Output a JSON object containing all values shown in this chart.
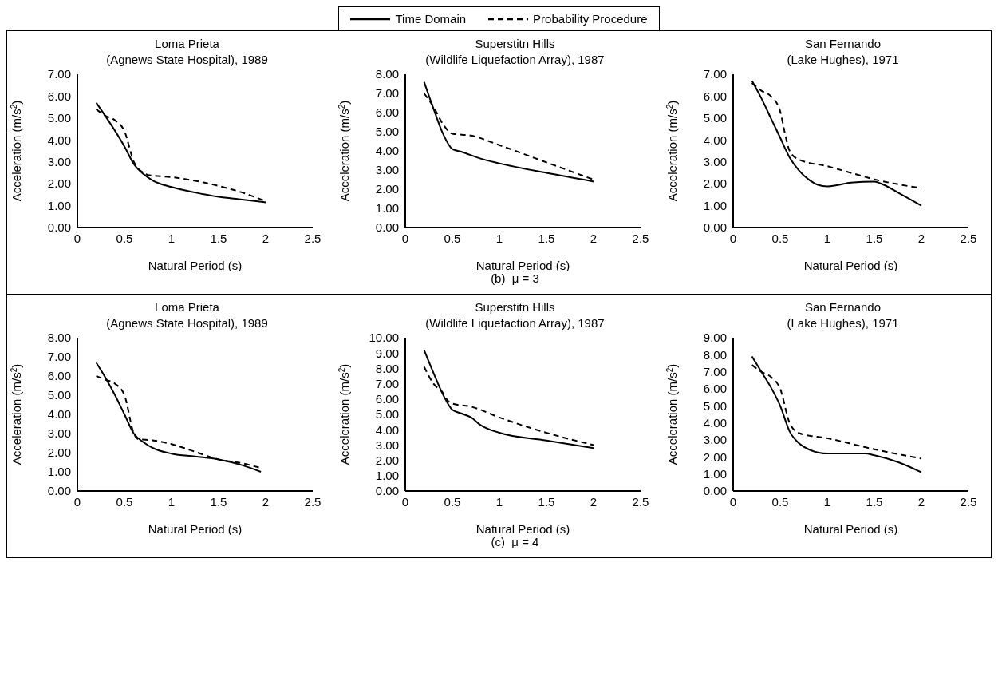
{
  "chart_data": [
    {
      "type": "line",
      "title": "Loma Prieta",
      "subtitle": "(Agnews State Hospital), 1989",
      "xlabel": "Natural Period (s)",
      "ylabel": "Acceleration (m/s$^{2}$)",
      "legend": "top",
      "series": [
        {
          "name": "Time Domain",
          "color": "#000000",
          "line_style": "solid",
          "x": [
            0.2,
            0.5,
            0.6,
            0.7,
            0.8,
            1.0,
            1.25,
            1.5,
            1.75,
            2.0
          ],
          "values": [
            5.7,
            3.7,
            2.9,
            2.45,
            2.15,
            1.85,
            1.6,
            1.4,
            1.28,
            1.15
          ]
        },
        {
          "name": "Probability Procedure",
          "color": "#000000",
          "line_style": "dashed",
          "x": [
            0.2,
            0.3,
            0.4,
            0.5,
            0.6,
            0.7,
            0.75,
            1.0,
            1.5,
            1.75,
            2.0
          ],
          "values": [
            5.4,
            5.1,
            4.9,
            4.4,
            3.0,
            2.5,
            2.4,
            2.3,
            1.9,
            1.6,
            1.2
          ]
        }
      ],
      "xlim": [
        0,
        2.5
      ],
      "xticks": [
        0,
        0.5,
        1,
        1.5,
        2,
        2.5
      ],
      "ylim": [
        0,
        7
      ],
      "yticks": [
        {
          "value": 0,
          "label": "0.00"
        },
        {
          "value": 1,
          "label": "1.00"
        },
        {
          "value": 2,
          "label": "2.00"
        },
        {
          "value": 3,
          "label": "3.00"
        },
        {
          "value": 4,
          "label": "4.00"
        },
        {
          "value": 5,
          "label": "5.00"
        },
        {
          "value": 6,
          "label": "6.00"
        },
        {
          "value": 7,
          "label": "7.00"
        }
      ]
    },
    {
      "type": "line",
      "title": "Superstitn Hills",
      "subtitle": "(Wildlife Liquefaction Array), 1987",
      "xlabel": "Natural Period (s)",
      "ylabel": "Acceleration (m/s$^{2}$)",
      "annotations": [
        "(b)  μ = 3"
      ],
      "series": [
        {
          "color": "#000000",
          "line_style": "solid",
          "x": [
            0.2,
            0.3,
            0.4,
            0.5,
            0.6,
            0.8,
            1.0,
            1.5,
            2.0
          ],
          "values": [
            7.6,
            6.2,
            4.9,
            4.1,
            3.95,
            3.6,
            3.35,
            2.85,
            2.4
          ]
        },
        {
          "color": "#000000",
          "line_style": "dashed",
          "x": [
            0.2,
            0.3,
            0.4,
            0.5,
            0.7,
            1.0,
            1.5,
            2.0
          ],
          "values": [
            7.0,
            6.3,
            5.4,
            4.9,
            4.8,
            4.3,
            3.4,
            2.5
          ]
        }
      ],
      "xlim": [
        0,
        2.5
      ],
      "xticks": [
        0,
        0.5,
        1,
        1.5,
        2,
        2.5
      ],
      "ylim": [
        0,
        8
      ],
      "yticks": [
        {
          "value": 0,
          "label": "0.00"
        },
        {
          "value": 1,
          "label": "1.00"
        },
        {
          "value": 2,
          "label": "2.00"
        },
        {
          "value": 3,
          "label": "3.00"
        },
        {
          "value": 4,
          "label": "4.00"
        },
        {
          "value": 5,
          "label": "5.00"
        },
        {
          "value": 6,
          "label": "6.00"
        },
        {
          "value": 7,
          "label": "7.00"
        },
        {
          "value": 8,
          "label": "8.00"
        }
      ]
    },
    {
      "type": "line",
      "title": "San Fernando",
      "subtitle": "(Lake Hughes), 1971",
      "xlabel": "Natural Period (s)",
      "ylabel": "Acceleration (m/s$^{2}$)",
      "series": [
        {
          "color": "#000000",
          "line_style": "solid",
          "x": [
            0.2,
            0.3,
            0.4,
            0.5,
            0.6,
            0.7,
            0.8,
            0.9,
            1.0,
            1.1,
            1.25,
            1.5,
            1.6,
            1.75,
            2.0
          ],
          "values": [
            6.7,
            5.9,
            5.0,
            4.1,
            3.2,
            2.6,
            2.2,
            1.95,
            1.88,
            1.93,
            2.05,
            2.1,
            1.95,
            1.6,
            1.0
          ]
        },
        {
          "color": "#000000",
          "line_style": "dashed",
          "x": [
            0.2,
            0.3,
            0.4,
            0.5,
            0.55,
            0.6,
            0.7,
            1.0,
            1.25,
            1.5,
            2.0
          ],
          "values": [
            6.6,
            6.25,
            6.0,
            5.3,
            4.3,
            3.5,
            3.1,
            2.8,
            2.5,
            2.2,
            1.8
          ]
        }
      ],
      "xlim": [
        0,
        2.5
      ],
      "xticks": [
        0,
        0.5,
        1,
        1.5,
        2,
        2.5
      ],
      "ylim": [
        0,
        7
      ],
      "yticks": [
        {
          "value": 0,
          "label": "0.00"
        },
        {
          "value": 1,
          "label": "1.00"
        },
        {
          "value": 2,
          "label": "2.00"
        },
        {
          "value": 3,
          "label": "3.00"
        },
        {
          "value": 4,
          "label": "4.00"
        },
        {
          "value": 5,
          "label": "5.00"
        },
        {
          "value": 6,
          "label": "6.00"
        },
        {
          "value": 7,
          "label": "7.00"
        }
      ]
    },
    {
      "type": "line",
      "title": "Loma Prieta",
      "subtitle": "(Agnews State Hospital), 1989",
      "xlabel": "Natural Period (s)",
      "ylabel": "Acceleration (m/s$^{2}$)",
      "series": [
        {
          "color": "#000000",
          "line_style": "solid",
          "x": [
            0.2,
            0.3,
            0.4,
            0.5,
            0.6,
            0.7,
            0.8,
            1.0,
            1.25,
            1.5,
            1.75,
            1.95
          ],
          "values": [
            6.7,
            5.9,
            5.0,
            4.0,
            3.0,
            2.55,
            2.25,
            1.95,
            1.8,
            1.65,
            1.35,
            1.0
          ]
        },
        {
          "color": "#000000",
          "line_style": "dashed",
          "x": [
            0.2,
            0.3,
            0.4,
            0.5,
            0.6,
            0.65,
            0.8,
            1.0,
            1.25,
            1.5,
            1.75,
            1.95
          ],
          "values": [
            6.0,
            5.8,
            5.6,
            5.0,
            3.0,
            2.7,
            2.65,
            2.45,
            2.05,
            1.65,
            1.45,
            1.2
          ]
        }
      ],
      "xlim": [
        0,
        2.5
      ],
      "xticks": [
        0,
        0.5,
        1,
        1.5,
        2,
        2.5
      ],
      "ylim": [
        0,
        8
      ],
      "yticks": [
        {
          "value": 0,
          "label": "0.00"
        },
        {
          "value": 1,
          "label": "1.00"
        },
        {
          "value": 2,
          "label": "2.00"
        },
        {
          "value": 3,
          "label": "3.00"
        },
        {
          "value": 4,
          "label": "4.00"
        },
        {
          "value": 5,
          "label": "5.00"
        },
        {
          "value": 6,
          "label": "6.00"
        },
        {
          "value": 7,
          "label": "7.00"
        },
        {
          "value": 8,
          "label": "8.00"
        }
      ]
    },
    {
      "type": "line",
      "title": "Superstitn Hills",
      "subtitle": "(Wildlife Liquefaction Array), 1987",
      "xlabel": "Natural Period (s)",
      "ylabel": "Acceleration (m/s$^{2}$)",
      "annotations": [
        "(c)  μ = 4"
      ],
      "series": [
        {
          "color": "#000000",
          "line_style": "solid",
          "x": [
            0.2,
            0.3,
            0.4,
            0.5,
            0.6,
            0.7,
            0.8,
            1.0,
            1.5,
            2.0
          ],
          "values": [
            9.2,
            7.7,
            6.3,
            5.3,
            5.05,
            4.8,
            4.3,
            3.8,
            3.3,
            2.8
          ]
        },
        {
          "color": "#000000",
          "line_style": "dashed",
          "x": [
            0.2,
            0.3,
            0.4,
            0.45,
            0.5,
            0.7,
            1.0,
            1.5,
            2.0
          ],
          "values": [
            8.1,
            7.0,
            6.4,
            5.9,
            5.7,
            5.5,
            4.8,
            3.8,
            3.0
          ]
        }
      ],
      "xlim": [
        0,
        2.5
      ],
      "xticks": [
        0,
        0.5,
        1,
        1.5,
        2,
        2.5
      ],
      "ylim": [
        0,
        10
      ],
      "yticks": [
        {
          "value": 0,
          "label": "0.00"
        },
        {
          "value": 1,
          "label": "1.00"
        },
        {
          "value": 2,
          "label": "2.00"
        },
        {
          "value": 3,
          "label": "3.00"
        },
        {
          "value": 4,
          "label": "4.00"
        },
        {
          "value": 5,
          "label": "5.00"
        },
        {
          "value": 6,
          "label": "6.00"
        },
        {
          "value": 7,
          "label": "7.00"
        },
        {
          "value": 8,
          "label": "8.00"
        },
        {
          "value": 9,
          "label": "9.00"
        },
        {
          "value": 10,
          "label": "10.00"
        }
      ]
    },
    {
      "type": "line",
      "title": "San Fernando",
      "subtitle": "(Lake Hughes), 1971",
      "xlabel": "Natural Period (s)",
      "ylabel": "Acceleration (m/s$^{2}$)",
      "series": [
        {
          "color": "#000000",
          "line_style": "solid",
          "x": [
            0.2,
            0.3,
            0.4,
            0.5,
            0.6,
            0.7,
            0.8,
            1.0,
            1.25,
            1.4,
            1.5,
            1.75,
            2.0
          ],
          "values": [
            7.9,
            7.0,
            6.1,
            5.0,
            3.5,
            2.8,
            2.45,
            2.2,
            2.2,
            2.2,
            2.1,
            1.7,
            1.1
          ]
        },
        {
          "color": "#000000",
          "line_style": "dashed",
          "x": [
            0.2,
            0.3,
            0.4,
            0.5,
            0.6,
            0.7,
            1.0,
            1.5,
            2.0
          ],
          "values": [
            7.4,
            7.0,
            6.7,
            6.0,
            4.0,
            3.4,
            3.1,
            2.45,
            1.9
          ]
        }
      ],
      "xlim": [
        0,
        2.5
      ],
      "xticks": [
        0,
        0.5,
        1,
        1.5,
        2,
        2.5
      ],
      "ylim": [
        0,
        9
      ],
      "yticks": [
        {
          "value": 0,
          "label": "0.00"
        },
        {
          "value": 1,
          "label": "1.00"
        },
        {
          "value": 2,
          "label": "2.00"
        },
        {
          "value": 3,
          "label": "3.00"
        },
        {
          "value": 4,
          "label": "4.00"
        },
        {
          "value": 5,
          "label": "5.00"
        },
        {
          "value": 6,
          "label": "6.00"
        },
        {
          "value": 7,
          "label": "7.00"
        },
        {
          "value": 8,
          "label": "8.00"
        },
        {
          "value": 9,
          "label": "9.00"
        }
      ]
    }
  ]
}
